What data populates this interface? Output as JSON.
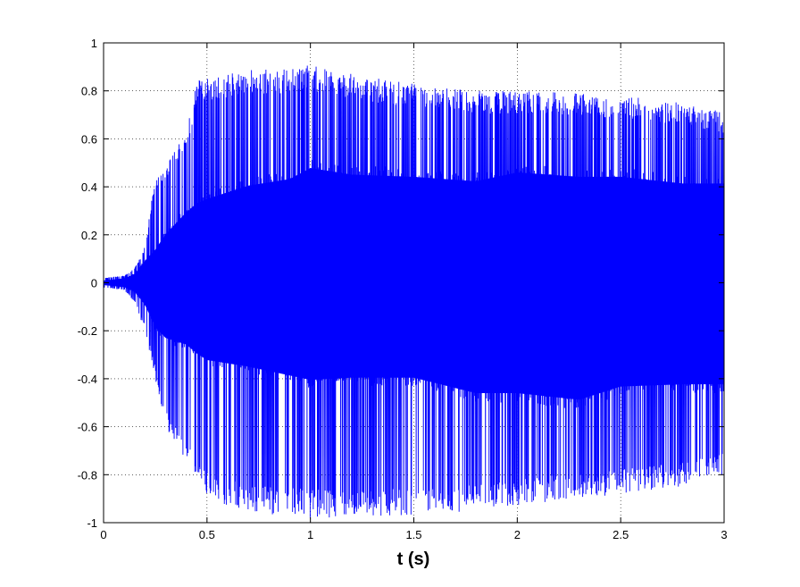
{
  "chart_data": {
    "type": "line",
    "title": "",
    "xlabel": "t (s)",
    "ylabel": "",
    "xlim": [
      0,
      3
    ],
    "ylim": [
      -1,
      1
    ],
    "grid": true,
    "legend": "none",
    "x_ticks": [
      0,
      0.5,
      1,
      1.5,
      2,
      2.5,
      3
    ],
    "x_tick_labels": [
      "0",
      "0.5",
      "1",
      "1.5",
      "2",
      "2.5",
      "3"
    ],
    "y_ticks": [
      -1,
      -0.8,
      -0.6,
      -0.4,
      -0.2,
      0,
      0.2,
      0.4,
      0.6,
      0.8,
      1
    ],
    "y_tick_labels": [
      "-1",
      "-0.8",
      "-0.6",
      "-0.4",
      "-0.2",
      "0",
      "0.2",
      "0.4",
      "0.6",
      "0.8",
      "1"
    ],
    "series": [
      {
        "line_color": "#0000ff",
        "description_of_shape": "dense oscillating audio waveform",
        "envelope": {
          "t": [
            0,
            0.1,
            0.15,
            0.2,
            0.25,
            0.3,
            0.4,
            0.45,
            0.5,
            0.7,
            0.9,
            1.0,
            1.2,
            1.5,
            1.8,
            2.0,
            2.3,
            2.5,
            2.8,
            3.0
          ],
          "peak_max": [
            0.02,
            0.03,
            0.06,
            0.15,
            0.45,
            0.5,
            0.62,
            0.85,
            0.86,
            0.89,
            0.9,
            0.91,
            0.87,
            0.83,
            0.8,
            0.8,
            0.79,
            0.78,
            0.75,
            0.71
          ],
          "peak_min": [
            -0.02,
            -0.03,
            -0.08,
            -0.2,
            -0.4,
            -0.6,
            -0.75,
            -0.82,
            -0.9,
            -0.96,
            -0.97,
            -0.98,
            -0.98,
            -0.97,
            -0.95,
            -0.93,
            -0.9,
            -0.88,
            -0.85,
            -0.8
          ],
          "core_max": [
            0.01,
            0.02,
            0.04,
            0.1,
            0.15,
            0.22,
            0.32,
            0.36,
            0.38,
            0.44,
            0.47,
            0.52,
            0.49,
            0.48,
            0.46,
            0.5,
            0.48,
            0.48,
            0.45,
            0.45
          ],
          "core_min": [
            -0.01,
            -0.02,
            -0.04,
            -0.1,
            -0.2,
            -0.25,
            -0.28,
            -0.32,
            -0.35,
            -0.38,
            -0.42,
            -0.44,
            -0.43,
            -0.43,
            -0.5,
            -0.5,
            -0.53,
            -0.47,
            -0.46,
            -0.46
          ]
        }
      }
    ]
  }
}
